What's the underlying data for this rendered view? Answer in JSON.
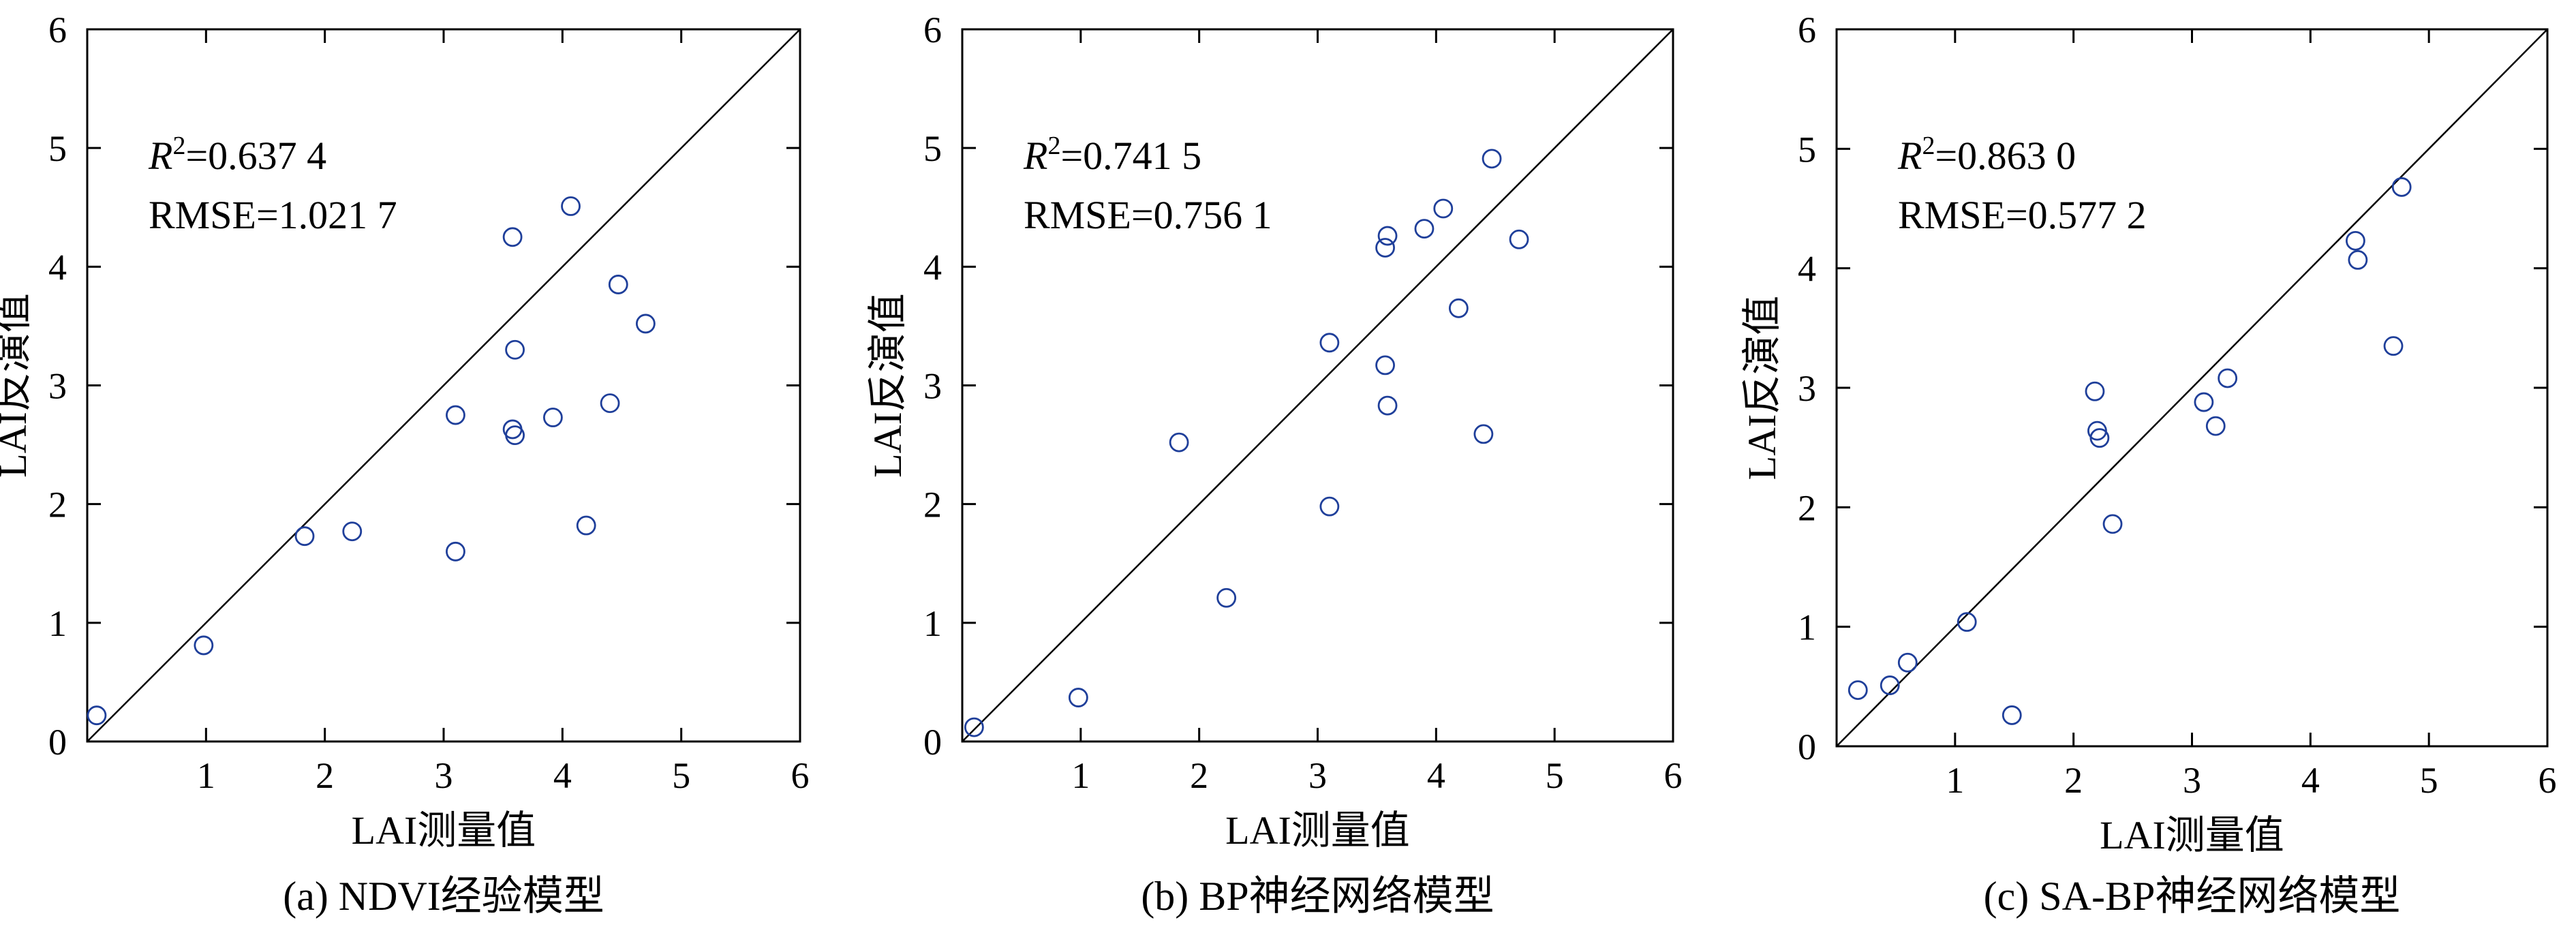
{
  "chart_data": [
    {
      "type": "scatter",
      "caption": "(a) NDVI经验模型",
      "xlabel": "LAI测量值",
      "ylabel": "LAI反演值",
      "xlim": [
        0,
        6
      ],
      "ylim": [
        0,
        6
      ],
      "xticks": [
        "1",
        "2",
        "3",
        "4",
        "5",
        "6"
      ],
      "yticks": [
        "0",
        "1",
        "2",
        "3",
        "4",
        "5",
        "6"
      ],
      "reference_line": "1:1",
      "annotation": {
        "r2_symbol": "R",
        "r2_sup": "2",
        "r2_value": "=0.637 4",
        "rmse": "RMSE=1.021 7"
      },
      "marker_color": "#1f3f9a",
      "points": [
        [
          0.08,
          0.22
        ],
        [
          0.98,
          0.81
        ],
        [
          1.83,
          1.73
        ],
        [
          2.23,
          1.77
        ],
        [
          3.1,
          2.75
        ],
        [
          3.1,
          1.6
        ],
        [
          3.58,
          4.25
        ],
        [
          3.6,
          3.3
        ],
        [
          3.58,
          2.63
        ],
        [
          3.6,
          2.58
        ],
        [
          3.92,
          2.73
        ],
        [
          4.07,
          4.51
        ],
        [
          4.2,
          1.82
        ],
        [
          4.4,
          2.85
        ],
        [
          4.47,
          3.85
        ],
        [
          4.7,
          3.52
        ]
      ]
    },
    {
      "type": "scatter",
      "caption": "(b) BP神经网络模型",
      "xlabel": "LAI测量值",
      "ylabel": "LAI反演值",
      "xlim": [
        0,
        6
      ],
      "ylim": [
        0,
        6
      ],
      "xticks": [
        "1",
        "2",
        "3",
        "4",
        "5",
        "6"
      ],
      "yticks": [
        "0",
        "1",
        "2",
        "3",
        "4",
        "5",
        "6"
      ],
      "reference_line": "1:1",
      "annotation": {
        "r2_symbol": "R",
        "r2_sup": "2",
        "r2_value": "=0.741 5",
        "rmse": "RMSE=0.756 1"
      },
      "marker_color": "#1f3f9a",
      "points": [
        [
          0.1,
          0.12
        ],
        [
          0.98,
          0.37
        ],
        [
          1.83,
          2.52
        ],
        [
          2.23,
          1.21
        ],
        [
          3.1,
          3.36
        ],
        [
          3.1,
          1.98
        ],
        [
          3.57,
          4.16
        ],
        [
          3.59,
          4.26
        ],
        [
          3.57,
          3.17
        ],
        [
          3.59,
          2.83
        ],
        [
          3.9,
          4.32
        ],
        [
          4.06,
          4.49
        ],
        [
          4.19,
          3.65
        ],
        [
          4.4,
          2.59
        ],
        [
          4.47,
          4.91
        ],
        [
          4.7,
          4.23
        ]
      ]
    },
    {
      "type": "scatter",
      "caption": "(c) SA-BP神经网络模型",
      "xlabel": "LAI测量值",
      "ylabel": "LAI反演值",
      "xlim": [
        0,
        6
      ],
      "ylim": [
        0,
        6
      ],
      "xticks": [
        "1",
        "2",
        "3",
        "4",
        "5",
        "6"
      ],
      "yticks": [
        "0",
        "1",
        "2",
        "3",
        "4",
        "5",
        "6"
      ],
      "reference_line": "1:1",
      "annotation": {
        "r2_symbol": "R",
        "r2_sup": "2",
        "r2_value": "=0.863 0",
        "rmse": "RMSE=0.577 2"
      },
      "marker_color": "#1f3f9a",
      "points": [
        [
          0.18,
          0.47
        ],
        [
          0.45,
          0.51
        ],
        [
          0.6,
          0.7
        ],
        [
          1.1,
          1.04
        ],
        [
          1.48,
          0.26
        ],
        [
          2.18,
          2.97
        ],
        [
          2.2,
          2.64
        ],
        [
          2.22,
          2.58
        ],
        [
          2.33,
          1.86
        ],
        [
          3.1,
          2.88
        ],
        [
          3.2,
          2.68
        ],
        [
          3.3,
          3.08
        ],
        [
          4.38,
          4.23
        ],
        [
          4.4,
          4.07
        ],
        [
          4.7,
          3.35
        ],
        [
          4.77,
          4.68
        ]
      ]
    }
  ]
}
